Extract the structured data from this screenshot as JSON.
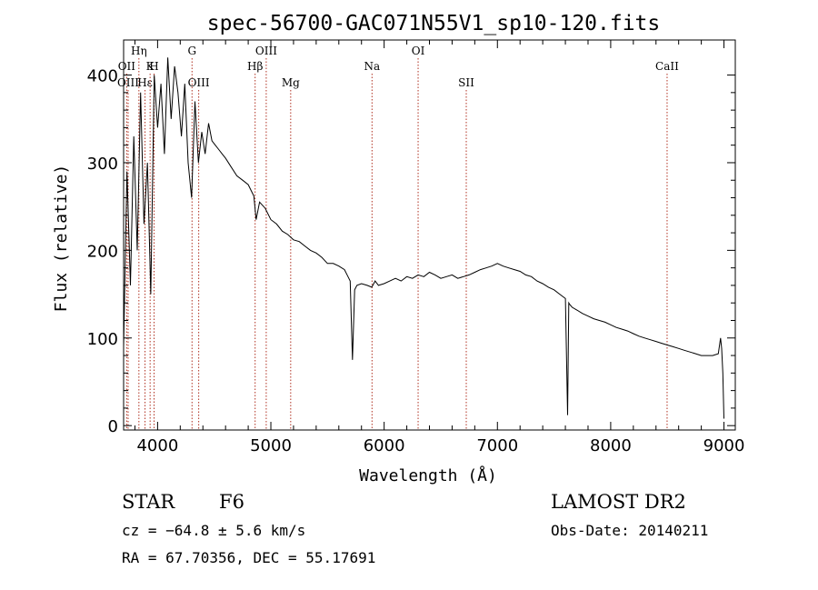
{
  "chart_data": {
    "type": "line",
    "title": "spec-56700-GAC071N55V1_sp10-120.fits",
    "xlabel": "Wavelength (Å)",
    "ylabel": "Flux (relative)",
    "xlim": [
      3700,
      9100
    ],
    "ylim": [
      -5,
      440
    ],
    "xticks": [
      4000,
      5000,
      6000,
      7000,
      8000,
      9000
    ],
    "yticks": [
      0,
      100,
      200,
      300,
      400
    ],
    "grid": false,
    "series": [
      {
        "x": [
          3700,
          3730,
          3760,
          3790,
          3820,
          3850,
          3880,
          3910,
          3940,
          3970,
          4000,
          4030,
          4060,
          4090,
          4120,
          4150,
          4180,
          4210,
          4240,
          4270,
          4300,
          4330,
          4360,
          4390,
          4420,
          4450,
          4480,
          4510,
          4540,
          4570,
          4600,
          4650,
          4700,
          4750,
          4800,
          4850,
          4870,
          4900,
          4950,
          5000,
          5050,
          5100,
          5150,
          5200,
          5250,
          5300,
          5350,
          5400,
          5450,
          5500,
          5550,
          5600,
          5650,
          5700,
          5720,
          5740,
          5760,
          5800,
          5850,
          5890,
          5900,
          5920,
          5950,
          6000,
          6050,
          6100,
          6150,
          6200,
          6250,
          6300,
          6350,
          6400,
          6450,
          6500,
          6550,
          6600,
          6650,
          6700,
          6750,
          6800,
          6850,
          6900,
          6950,
          7000,
          7050,
          7100,
          7150,
          7200,
          7250,
          7300,
          7350,
          7400,
          7450,
          7500,
          7550,
          7600,
          7620,
          7630,
          7640,
          7660,
          7700,
          7750,
          7800,
          7850,
          7900,
          7950,
          8000,
          8050,
          8100,
          8150,
          8200,
          8250,
          8300,
          8350,
          8400,
          8450,
          8500,
          8550,
          8600,
          8650,
          8700,
          8750,
          8800,
          8850,
          8900,
          8950,
          8970,
          8980,
          8990,
          9000
        ],
        "y": [
          90,
          290,
          160,
          330,
          200,
          380,
          230,
          300,
          150,
          400,
          340,
          390,
          310,
          420,
          350,
          410,
          380,
          330,
          390,
          300,
          260,
          370,
          300,
          335,
          310,
          345,
          325,
          320,
          315,
          310,
          305,
          295,
          285,
          280,
          275,
          262,
          235,
          255,
          248,
          235,
          230,
          222,
          218,
          212,
          210,
          205,
          200,
          197,
          192,
          185,
          185,
          182,
          178,
          165,
          75,
          155,
          160,
          162,
          160,
          158,
          160,
          165,
          160,
          162,
          165,
          168,
          165,
          170,
          168,
          172,
          170,
          175,
          172,
          168,
          170,
          172,
          168,
          170,
          172,
          175,
          178,
          180,
          182,
          185,
          182,
          180,
          178,
          176,
          172,
          170,
          165,
          162,
          158,
          155,
          150,
          145,
          12,
          140,
          138,
          135,
          132,
          128,
          125,
          122,
          120,
          118,
          115,
          112,
          110,
          108,
          105,
          102,
          100,
          98,
          96,
          94,
          92,
          90,
          88,
          86,
          84,
          82,
          80,
          80,
          80,
          82,
          100,
          88,
          60,
          8
        ]
      }
    ],
    "line_markers": [
      {
        "label": "OII",
        "x": 3727,
        "row": 2
      },
      {
        "label": "OIII",
        "x": 3740,
        "row": 3
      },
      {
        "label": "Hη",
        "x": 3835,
        "row": 1
      },
      {
        "label": "Hε",
        "x": 3889,
        "row": 3
      },
      {
        "label": "K",
        "x": 3934,
        "row": 2
      },
      {
        "label": "H",
        "x": 3969,
        "row": 2
      },
      {
        "label": "G",
        "x": 4304,
        "row": 1
      },
      {
        "label": "OIII",
        "x": 4363,
        "row": 3
      },
      {
        "label": "Hβ",
        "x": 4861,
        "row": 2
      },
      {
        "label": "OIII",
        "x": 4959,
        "row": 1
      },
      {
        "label": "Mg",
        "x": 5175,
        "row": 3
      },
      {
        "label": "Na",
        "x": 5893,
        "row": 2
      },
      {
        "label": "OI",
        "x": 6300,
        "row": 1
      },
      {
        "label": "SII",
        "x": 6725,
        "row": 3
      },
      {
        "label": "CaII",
        "x": 8498,
        "row": 2
      }
    ]
  },
  "info": {
    "class_label": "STAR",
    "subclass": "F6",
    "cz": "cz = −64.8 ± 5.6 km/s",
    "radec": "RA =  67.70356, DEC =  55.17691",
    "survey": "LAMOST DR2",
    "obs_date": "Obs-Date: 20140211"
  }
}
